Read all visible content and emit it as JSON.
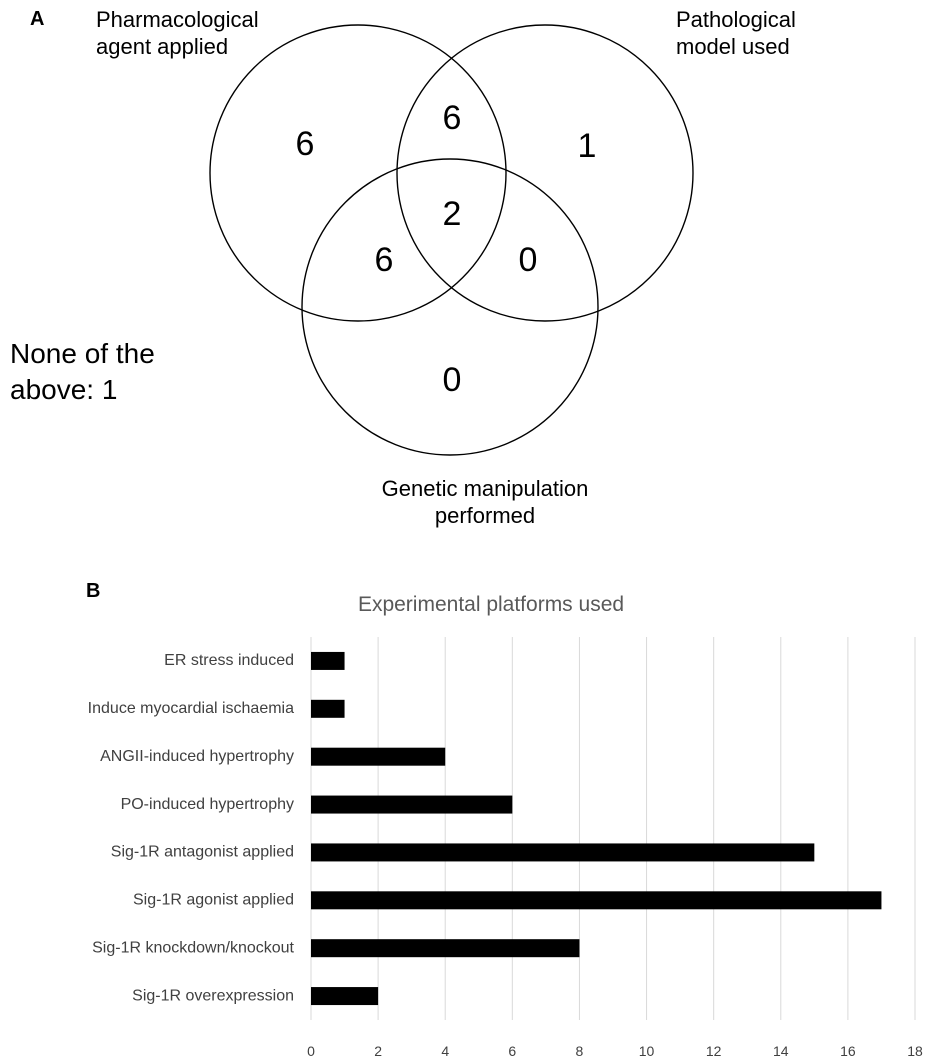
{
  "panel_a": {
    "label": "A",
    "sets": {
      "pharmacological": [
        "Pharmacological",
        "agent applied"
      ],
      "pathological": [
        "Pathological",
        "model used"
      ],
      "genetic": [
        "Genetic manipulation",
        "performed"
      ]
    },
    "regions": {
      "pharmacological_only": "6",
      "pharmacological_and_pathological": "6",
      "pathological_only": "1",
      "all_three": "2",
      "pharmacological_and_genetic": "6",
      "pathological_and_genetic": "0",
      "genetic_only": "0"
    },
    "none_label": [
      "None of the",
      "above: 1"
    ]
  },
  "panel_b": {
    "label": "B"
  },
  "chart_data": {
    "type": "bar",
    "orientation": "horizontal",
    "title": "Experimental platforms used",
    "categories": [
      "ER stress induced",
      "Induce myocardial ischaemia",
      "ANGII-induced hypertrophy",
      "PO-induced hypertrophy",
      "Sig-1R antagonist applied",
      "Sig-1R agonist applied",
      "Sig-1R knockdown/knockout",
      "Sig-1R overexpression"
    ],
    "values": [
      1,
      1,
      4,
      6,
      15,
      17,
      8,
      2
    ],
    "xlim": [
      0,
      18
    ],
    "xticks": [
      0,
      2,
      4,
      6,
      8,
      10,
      12,
      14,
      16,
      18
    ],
    "grid": "vertical",
    "bar_color": "#000000",
    "grid_color": "#d9d9d9"
  }
}
